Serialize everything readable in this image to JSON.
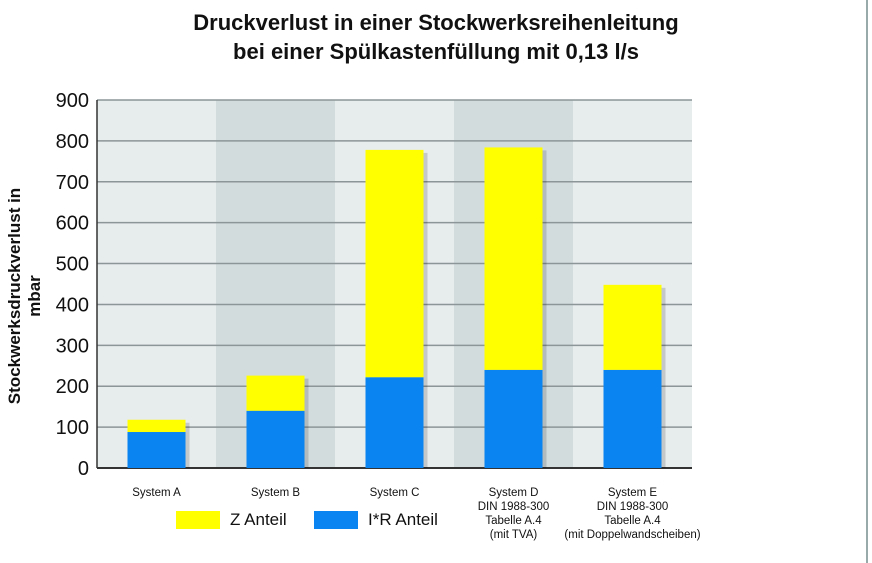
{
  "chart_data": {
    "type": "bar",
    "stacked": true,
    "title": "Druckverlust in einer Stockwerksreihenleitung",
    "subtitle": "bei einer Spülkastenfüllung mit 0,13 l/s",
    "xlabel": "",
    "ylabel": "Stockwerksdruckverlust in mbar",
    "ylim": [
      0,
      900
    ],
    "yticks": [
      0,
      100,
      200,
      300,
      400,
      500,
      600,
      700,
      800,
      900
    ],
    "grid": true,
    "legend_placement": "bottom-left",
    "categories": [
      [
        "System A"
      ],
      [
        "System B"
      ],
      [
        "System C"
      ],
      [
        "System D",
        "DIN 1988-300",
        "Tabelle A.4",
        "(mit TVA)"
      ],
      [
        "System E",
        "DIN 1988-300",
        "Tabelle A.4",
        "(mit Doppelwandscheiben)"
      ]
    ],
    "series": [
      {
        "name": "I*R Anteil",
        "color": "#0a84f0",
        "values": [
          88,
          140,
          222,
          240,
          240
        ]
      },
      {
        "name": "Z Anteil",
        "color": "#ffff00",
        "values": [
          30,
          86,
          556,
          544,
          208
        ]
      }
    ],
    "band_colors": [
      "#e7eced",
      "#d3dcdd"
    ]
  }
}
